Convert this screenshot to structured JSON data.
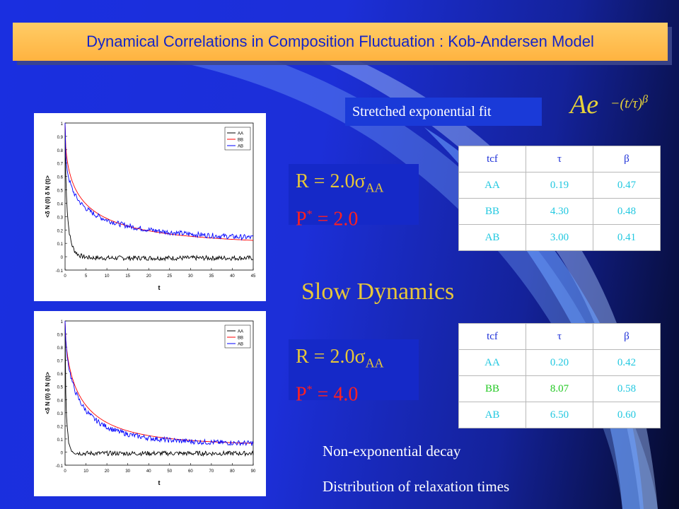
{
  "slide": {
    "title": "Dynamical Correlations in Composition Fluctuation :  Kob-Andersen Model",
    "fit_label": "Stretched exponential fit",
    "formula": {
      "base": "Ae",
      "exponent": "−(t/τ)",
      "power": "β"
    },
    "colors": {
      "accent_yellow": "#e6c63a",
      "title_bar": "#ffbf50",
      "red": "#ff2020",
      "cyan": "#22c8e0",
      "green": "#22c822"
    },
    "slow_dynamics": "Slow Dynamics",
    "notes": [
      "Non-exponential decay",
      "Distribution of relaxation times"
    ]
  },
  "param_boxes": [
    {
      "r_prefix": "R = 2.0",
      "r_sigma": "σ",
      "r_sub": "AA",
      "p_prefix": "P",
      "p_sup": "*",
      "p_suffix": " = 2.0"
    },
    {
      "r_prefix": "R = 2.0",
      "r_sigma": "σ",
      "r_sub": "AA",
      "p_prefix": "P",
      "p_sup": "*",
      "p_suffix": " = 4.0"
    }
  ],
  "tables": [
    {
      "headers": [
        "tcf",
        "τ",
        "β"
      ],
      "rows": [
        [
          "AA",
          "0.19",
          "0.47"
        ],
        [
          "BB",
          "4.30",
          "0.48"
        ],
        [
          "AB",
          "3.00",
          "0.41"
        ]
      ]
    },
    {
      "headers": [
        "tcf",
        "τ",
        "β"
      ],
      "rows": [
        [
          "AA",
          "0.20",
          "0.42"
        ],
        [
          "BB",
          "8.07",
          "0.58"
        ],
        [
          "AB",
          "6.50",
          "0.60"
        ]
      ]
    }
  ],
  "plots": [
    {
      "ylabel": "<δ N (0) δ N (t)>",
      "xlabel": "t",
      "xticks": [
        "0",
        "5",
        "10",
        "15",
        "20",
        "25",
        "30",
        "35",
        "40",
        "45"
      ],
      "yticks": [
        "-0.1",
        "0",
        "0.1",
        "0.2",
        "0.3",
        "0.4",
        "0.5",
        "0.6",
        "0.7",
        "0.8",
        "0.9",
        "1"
      ],
      "legend": [
        "AA",
        "BB",
        "AB"
      ]
    },
    {
      "ylabel": "<δ N (0) δ N (t)>",
      "xlabel": "t",
      "xticks": [
        "0",
        "10",
        "20",
        "30",
        "40",
        "50",
        "60",
        "70",
        "80",
        "90"
      ],
      "yticks": [
        "-0.1",
        "0",
        "0.1",
        "0.2",
        "0.3",
        "0.4",
        "0.5",
        "0.6",
        "0.7",
        "0.8",
        "0.9",
        "1"
      ],
      "legend": [
        "AA",
        "BB",
        "AB"
      ]
    }
  ]
}
